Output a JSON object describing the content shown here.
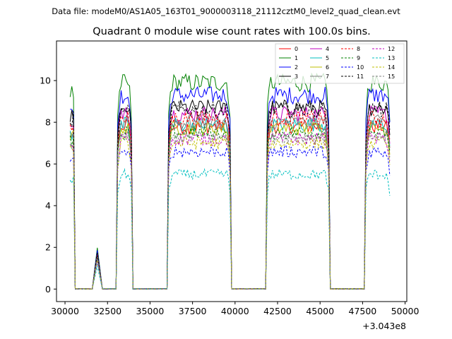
{
  "chart_data": {
    "type": "line",
    "suptitle": "Data file: modeM0/AS1A05_163T01_9000003118_21112cztM0_level2_quad_clean.evt",
    "title": "Quadrant 0 module wise count rates with 100.0s bins.",
    "xlabel": "",
    "ylabel": "",
    "x_offset_label": "+3.043e8",
    "xlim": [
      29500,
      50100
    ],
    "ylim": [
      -0.6,
      11.9
    ],
    "x_ticks": [
      30000,
      32500,
      35000,
      37500,
      40000,
      42500,
      45000,
      47500,
      50000
    ],
    "x_tick_labels": [
      "30000",
      "32500",
      "35000",
      "37500",
      "40000",
      "42500",
      "45000",
      "47500",
      "50000"
    ],
    "y_ticks": [
      0,
      2,
      4,
      6,
      8,
      10
    ],
    "y_tick_labels": [
      "0",
      "2",
      "4",
      "6",
      "8",
      "10"
    ],
    "legend_position": "top-right",
    "segments": [
      [
        30300,
        30500
      ],
      [
        31600,
        32200
      ],
      [
        33100,
        33900
      ],
      [
        36100,
        39700
      ],
      [
        41900,
        45500
      ],
      [
        47700,
        49100
      ]
    ],
    "series": [
      {
        "name": "0",
        "level": 7.8,
        "color": "#ff0000",
        "dash": false
      },
      {
        "name": "1",
        "level": 9.9,
        "color": "#008000",
        "dash": false
      },
      {
        "name": "2",
        "level": 9.3,
        "color": "#0000ff",
        "dash": false
      },
      {
        "name": "3",
        "level": 8.7,
        "color": "#000000",
        "dash": false
      },
      {
        "name": "4",
        "level": 8.4,
        "color": "#bf00bf",
        "dash": false
      },
      {
        "name": "5",
        "level": 7.9,
        "color": "#00bfbf",
        "dash": false
      },
      {
        "name": "6",
        "level": 7.7,
        "color": "#bfbf00",
        "dash": false
      },
      {
        "name": "7",
        "level": 8.0,
        "color": "#808080",
        "dash": false
      },
      {
        "name": "8",
        "level": 8.2,
        "color": "#ff0000",
        "dash": true
      },
      {
        "name": "9",
        "level": 7.5,
        "color": "#008000",
        "dash": true
      },
      {
        "name": "10",
        "level": 6.6,
        "color": "#0000ff",
        "dash": true
      },
      {
        "name": "11",
        "level": 8.6,
        "color": "#000000",
        "dash": true
      },
      {
        "name": "12",
        "level": 7.2,
        "color": "#bf00bf",
        "dash": true
      },
      {
        "name": "13",
        "level": 5.5,
        "color": "#00bfbf",
        "dash": true
      },
      {
        "name": "14",
        "level": 7.0,
        "color": "#bfbf00",
        "dash": true
      },
      {
        "name": "15",
        "level": 7.3,
        "color": "#808080",
        "dash": true
      }
    ]
  }
}
